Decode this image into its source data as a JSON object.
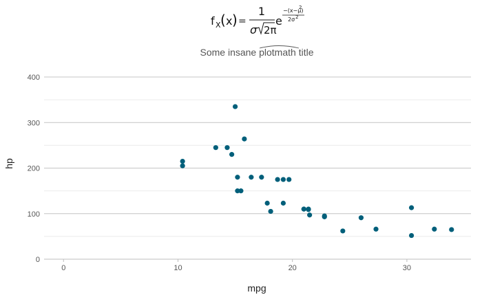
{
  "chart_data": {
    "type": "scatter",
    "formula": {
      "lhs_f": "f",
      "lhs_sub": "X",
      "lhs_arg": "x",
      "equals": "=",
      "numerator": "1",
      "denominator_sigma": "σ",
      "denominator_root": "2π",
      "exp_base": "e",
      "exp_numerator": "−(x−μ)",
      "exp_numerator_power": "2",
      "exp_denominator": "2σ",
      "exp_denominator_power": "2"
    },
    "title_prefix": "Some insane ",
    "title_accent": "plotmath",
    "title_suffix": " title",
    "xlabel": "mpg",
    "ylabel": "hp",
    "xlim": [
      -1.7,
      35.6
    ],
    "ylim": [
      0,
      400
    ],
    "xticks": [
      0,
      10,
      20,
      30
    ],
    "yticks": [
      0,
      100,
      200,
      300,
      400
    ],
    "grid": true,
    "point_color": "#005f7a",
    "points": [
      {
        "x": 21.0,
        "y": 110
      },
      {
        "x": 21.0,
        "y": 110
      },
      {
        "x": 22.8,
        "y": 93
      },
      {
        "x": 21.4,
        "y": 110
      },
      {
        "x": 18.7,
        "y": 175
      },
      {
        "x": 18.1,
        "y": 105
      },
      {
        "x": 14.3,
        "y": 245
      },
      {
        "x": 24.4,
        "y": 62
      },
      {
        "x": 22.8,
        "y": 95
      },
      {
        "x": 19.2,
        "y": 123
      },
      {
        "x": 17.8,
        "y": 123
      },
      {
        "x": 16.4,
        "y": 180
      },
      {
        "x": 17.3,
        "y": 180
      },
      {
        "x": 15.2,
        "y": 180
      },
      {
        "x": 10.4,
        "y": 205
      },
      {
        "x": 10.4,
        "y": 215
      },
      {
        "x": 14.7,
        "y": 230
      },
      {
        "x": 32.4,
        "y": 66
      },
      {
        "x": 30.4,
        "y": 52
      },
      {
        "x": 33.9,
        "y": 65
      },
      {
        "x": 21.5,
        "y": 97
      },
      {
        "x": 15.5,
        "y": 150
      },
      {
        "x": 15.2,
        "y": 150
      },
      {
        "x": 13.3,
        "y": 245
      },
      {
        "x": 19.2,
        "y": 175
      },
      {
        "x": 27.3,
        "y": 66
      },
      {
        "x": 26.0,
        "y": 91
      },
      {
        "x": 30.4,
        "y": 113
      },
      {
        "x": 15.8,
        "y": 264
      },
      {
        "x": 19.7,
        "y": 175
      },
      {
        "x": 15.0,
        "y": 335
      },
      {
        "x": 21.4,
        "y": 109
      }
    ]
  }
}
